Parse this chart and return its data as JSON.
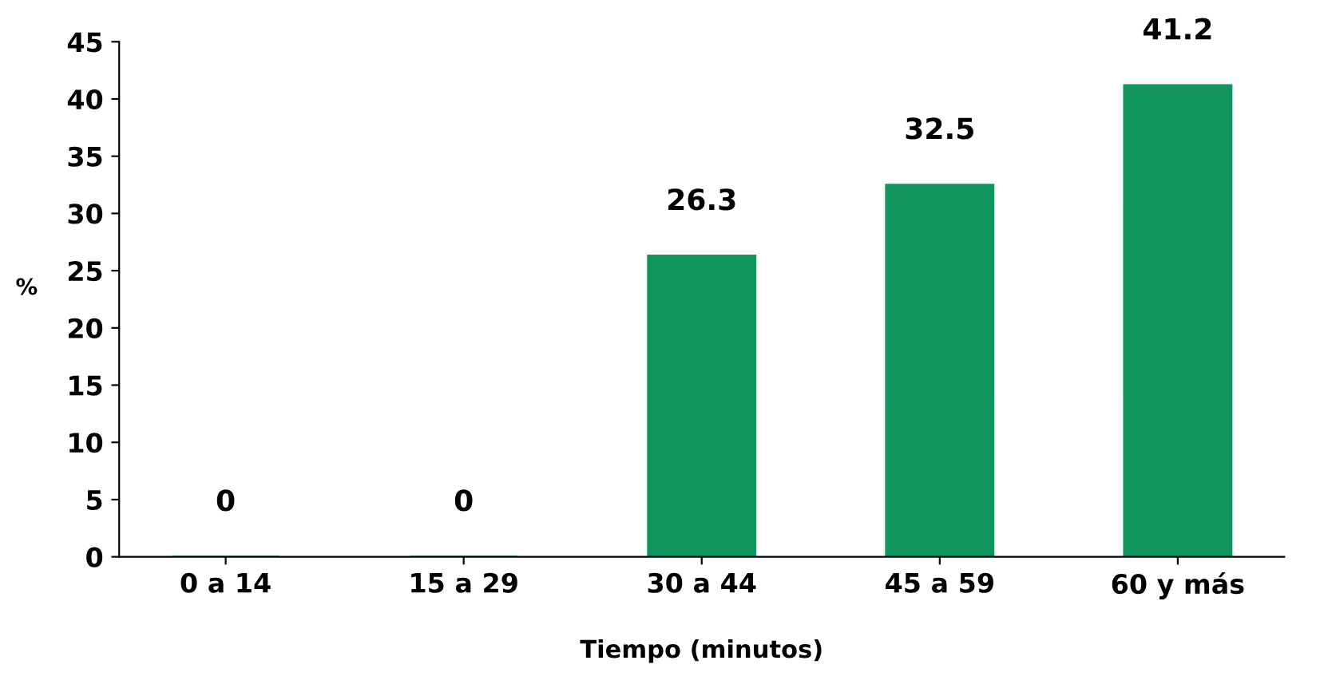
{
  "chart_data": {
    "type": "bar",
    "xlabel": "Tiempo (minutos)",
    "ylabel": "%",
    "categories": [
      "0 a 14",
      "15 a 29",
      "30 a 44",
      "45 a 59",
      "60 y más"
    ],
    "values": [
      0,
      0,
      26.3,
      32.5,
      41.2
    ],
    "color": "#12955e",
    "ylim": [
      0,
      45
    ],
    "yticks": [
      0,
      5,
      10,
      15,
      20,
      25,
      30,
      35,
      40,
      45
    ],
    "data_labels": true,
    "grid": false
  }
}
